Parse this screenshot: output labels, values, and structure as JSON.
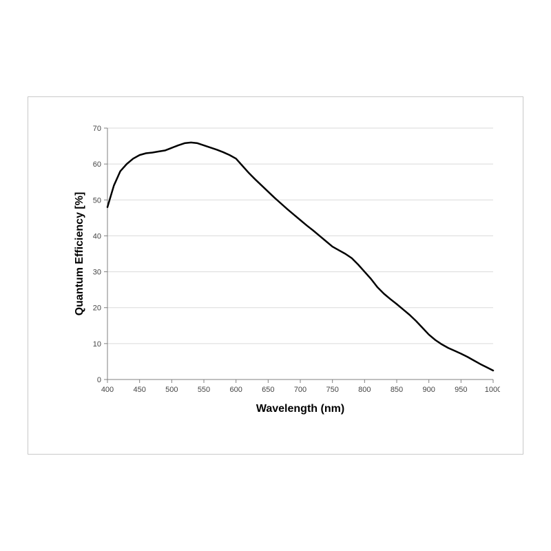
{
  "chart": {
    "type": "line",
    "xlabel": "Wavelength (nm)",
    "ylabel": "Quantum Efficiency [%]",
    "label_fontsize": 16,
    "tick_fontsize": 11,
    "xlim": [
      400,
      1000
    ],
    "ylim": [
      0,
      70
    ],
    "xtick_step": 50,
    "ytick_step": 10,
    "xticks": [
      400,
      450,
      500,
      550,
      600,
      650,
      700,
      750,
      800,
      850,
      900,
      950,
      1000
    ],
    "yticks": [
      0,
      10,
      20,
      30,
      40,
      50,
      60,
      70
    ],
    "background_color": "#ffffff",
    "frame_border_color": "#c8c8c8",
    "grid_color": "#d9d9d9",
    "axis_line_color": "#808080",
    "series_color": "#000000",
    "series_line_width": 2.5,
    "text_color": "#444444",
    "x": [
      400,
      410,
      420,
      430,
      440,
      450,
      460,
      470,
      480,
      490,
      500,
      510,
      520,
      530,
      540,
      550,
      560,
      570,
      580,
      590,
      600,
      610,
      620,
      630,
      640,
      650,
      660,
      670,
      680,
      690,
      700,
      710,
      720,
      730,
      740,
      750,
      760,
      770,
      780,
      790,
      800,
      810,
      820,
      830,
      840,
      850,
      860,
      870,
      880,
      890,
      900,
      910,
      920,
      930,
      940,
      950,
      960,
      970,
      980,
      990,
      1000
    ],
    "y": [
      48,
      54,
      58,
      60,
      61.5,
      62.5,
      63,
      63.2,
      63.5,
      63.8,
      64.5,
      65.2,
      65.8,
      66,
      65.8,
      65.2,
      64.6,
      64,
      63.3,
      62.5,
      61.5,
      59.5,
      57.5,
      55.7,
      54,
      52.3,
      50.6,
      49,
      47.4,
      45.9,
      44.4,
      42.9,
      41.5,
      40,
      38.5,
      37,
      36,
      35,
      33.8,
      32,
      30,
      28,
      25.7,
      23.9,
      22.4,
      21,
      19.5,
      18,
      16.3,
      14.4,
      12.5,
      11,
      9.8,
      8.8,
      8,
      7.2,
      6.3,
      5.3,
      4.3,
      3.4,
      2.5
    ]
  }
}
